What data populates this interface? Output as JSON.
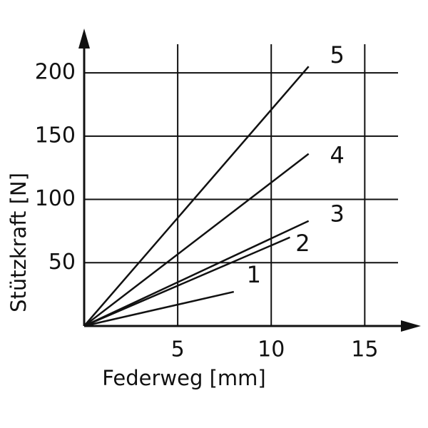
{
  "chart_data": {
    "type": "line",
    "x_label": "Federweg [mm]",
    "y_label": "Stützkraft [N]",
    "xlim": [
      0,
      18
    ],
    "ylim": [
      0,
      235
    ],
    "xticks": [
      5,
      10,
      15
    ],
    "yticks": [
      50,
      100,
      150,
      200
    ],
    "grid": true,
    "series": [
      {
        "name": "1",
        "color": "#111111",
        "x": [
          0,
          8
        ],
        "values": [
          0,
          27
        ]
      },
      {
        "name": "2",
        "color": "#111111",
        "x": [
          0,
          11
        ],
        "values": [
          0,
          70
        ]
      },
      {
        "name": "3",
        "color": "#111111",
        "x": [
          0,
          12
        ],
        "values": [
          0,
          83
        ]
      },
      {
        "name": "4",
        "color": "#111111",
        "x": [
          0,
          12
        ],
        "values": [
          0,
          136
        ]
      },
      {
        "name": "5",
        "color": "#111111",
        "x": [
          0,
          12
        ],
        "values": [
          0,
          205
        ]
      }
    ]
  }
}
